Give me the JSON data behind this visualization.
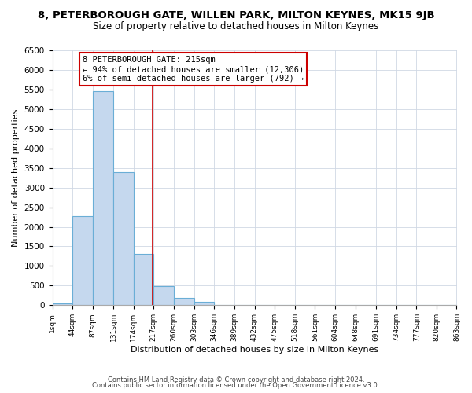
{
  "title": "8, PETERBOROUGH GATE, WILLEN PARK, MILTON KEYNES, MK15 9JB",
  "subtitle": "Size of property relative to detached houses in Milton Keynes",
  "xlabel": "Distribution of detached houses by size in Milton Keynes",
  "ylabel": "Number of detached properties",
  "bar_color": "#c5d8ee",
  "bar_edge_color": "#6aaed6",
  "background_color": "#ffffff",
  "grid_color": "#d0d8e4",
  "annotation_box_color": "#ffffff",
  "annotation_border_color": "#cc0000",
  "vline_color": "#cc0000",
  "annotation_line1": "8 PETERBOROUGH GATE: 215sqm",
  "annotation_line2": "← 94% of detached houses are smaller (12,306)",
  "annotation_line3": "6% of semi-detached houses are larger (792) →",
  "tick_labels": [
    "1sqm",
    "44sqm",
    "87sqm",
    "131sqm",
    "174sqm",
    "217sqm",
    "260sqm",
    "303sqm",
    "346sqm",
    "389sqm",
    "432sqm",
    "475sqm",
    "518sqm",
    "561sqm",
    "604sqm",
    "648sqm",
    "691sqm",
    "734sqm",
    "777sqm",
    "820sqm",
    "863sqm"
  ],
  "bar_heights": [
    50,
    2270,
    5450,
    3400,
    1300,
    490,
    190,
    90,
    0,
    0,
    0,
    0,
    0,
    0,
    0,
    0,
    0,
    0,
    0,
    0
  ],
  "bin_edges": [
    1,
    44,
    87,
    131,
    174,
    217,
    260,
    303,
    346,
    389,
    432,
    475,
    518,
    561,
    604,
    648,
    691,
    734,
    777,
    820,
    863
  ],
  "vline_x": 215,
  "ylim": [
    0,
    6500
  ],
  "xlim_left": 1,
  "xlim_right": 863,
  "yticks": [
    0,
    500,
    1000,
    1500,
    2000,
    2500,
    3000,
    3500,
    4000,
    4500,
    5000,
    5500,
    6000,
    6500
  ],
  "footer1": "Contains HM Land Registry data © Crown copyright and database right 2024.",
  "footer2": "Contains public sector information licensed under the Open Government Licence v3.0."
}
